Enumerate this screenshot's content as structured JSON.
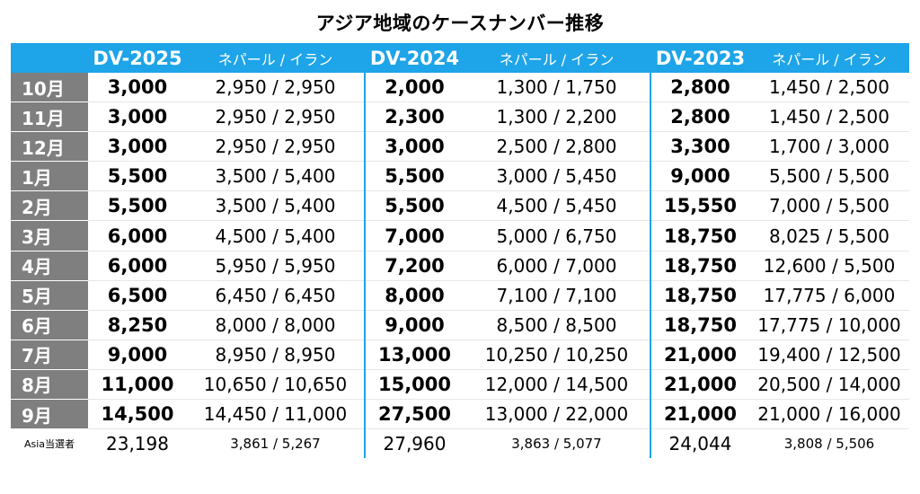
{
  "title": "アジア地域のケースナンバー推移",
  "colors": {
    "header_bg": "#1EA4E8",
    "month_bg": "#7f7f7f",
    "separator": "#1EA4E8"
  },
  "headers": [
    {
      "version": "DV-2025",
      "sub": "ネパール / イラン"
    },
    {
      "version": "DV-2024",
      "sub": "ネパール / イラン"
    },
    {
      "version": "DV-2023",
      "sub": "ネパール / イラン"
    }
  ],
  "rows": [
    {
      "month": "10月",
      "cells": [
        [
          "3,000",
          "2,950 / 2,950"
        ],
        [
          "2,000",
          "1,300 / 1,750"
        ],
        [
          "2,800",
          "1,450 / 2,500"
        ]
      ]
    },
    {
      "month": "11月",
      "cells": [
        [
          "3,000",
          "2,950 / 2,950"
        ],
        [
          "2,300",
          "1,300 / 2,200"
        ],
        [
          "2,800",
          "1,450 / 2,500"
        ]
      ]
    },
    {
      "month": "12月",
      "cells": [
        [
          "3,000",
          "2,950 / 2,950"
        ],
        [
          "3,000",
          "2,500 / 2,800"
        ],
        [
          "3,300",
          "1,700 / 3,000"
        ]
      ]
    },
    {
      "month": "1月",
      "cells": [
        [
          "5,500",
          "3,500 / 5,400"
        ],
        [
          "5,500",
          "3,000 / 5,450"
        ],
        [
          "9,000",
          "5,500 / 5,500"
        ]
      ]
    },
    {
      "month": "2月",
      "cells": [
        [
          "5,500",
          "3,500 / 5,400"
        ],
        [
          "5,500",
          "4,500 / 5,450"
        ],
        [
          "15,550",
          "7,000 / 5,500"
        ]
      ]
    },
    {
      "month": "3月",
      "cells": [
        [
          "6,000",
          "4,500 / 5,400"
        ],
        [
          "7,000",
          "5,000 / 6,750"
        ],
        [
          "18,750",
          "8,025 / 5,500"
        ]
      ]
    },
    {
      "month": "4月",
      "cells": [
        [
          "6,000",
          "5,950 / 5,950"
        ],
        [
          "7,200",
          "6,000 / 7,000"
        ],
        [
          "18,750",
          "12,600 / 5,500"
        ]
      ]
    },
    {
      "month": "5月",
      "cells": [
        [
          "6,500",
          "6,450 / 6,450"
        ],
        [
          "8,000",
          "7,100 / 7,100"
        ],
        [
          "18,750",
          "17,775 / 6,000"
        ]
      ]
    },
    {
      "month": "6月",
      "cells": [
        [
          "8,250",
          "8,000 / 8,000"
        ],
        [
          "9,000",
          "8,500 / 8,500"
        ],
        [
          "18,750",
          "17,775 / 10,000"
        ]
      ]
    },
    {
      "month": "7月",
      "cells": [
        [
          "9,000",
          "8,950 / 8,950"
        ],
        [
          "13,000",
          "10,250 / 10,250"
        ],
        [
          "21,000",
          "19,400 / 12,500"
        ]
      ]
    },
    {
      "month": "8月",
      "cells": [
        [
          "11,000",
          "10,650 / 10,650"
        ],
        [
          "15,000",
          "12,000 / 14,500"
        ],
        [
          "21,000",
          "20,500 / 14,000"
        ]
      ]
    },
    {
      "month": "9月",
      "cells": [
        [
          "14,500",
          "14,450 / 11,000"
        ],
        [
          "27,500",
          "13,000 / 22,000"
        ],
        [
          "21,000",
          "21,000 / 16,000"
        ]
      ]
    }
  ],
  "total": {
    "label": "Asia当選者",
    "cells": [
      [
        "23,198",
        "3,861 / 5,267"
      ],
      [
        "27,960",
        "3,863 / 5,077"
      ],
      [
        "24,044",
        "3,808 / 5,506"
      ]
    ]
  }
}
